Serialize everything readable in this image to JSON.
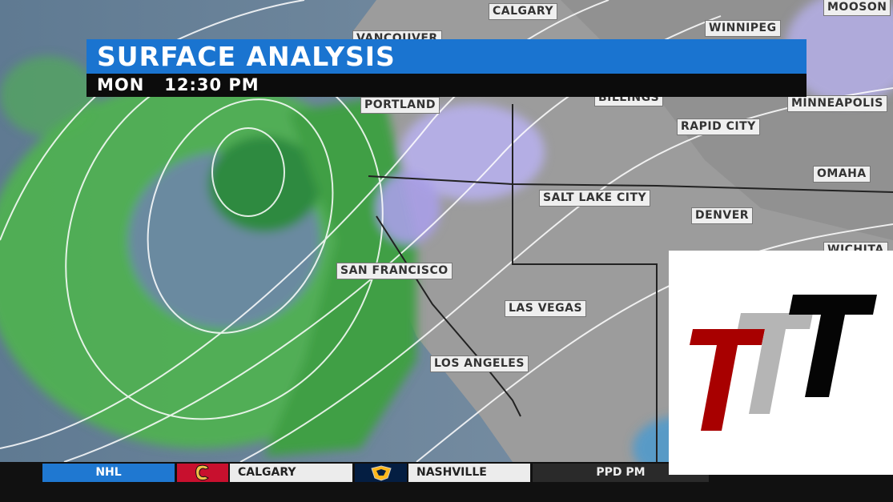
{
  "banner": {
    "title": "SURFACE ANALYSIS",
    "subtitle": "MON   12:30 PM"
  },
  "cities": [
    {
      "name": "CALGARY"
    },
    {
      "name": "WINNIPEG"
    },
    {
      "name": "MOOSON"
    },
    {
      "name": "VANCOUVER"
    },
    {
      "name": "PORTLAND"
    },
    {
      "name": "BILLINGS"
    },
    {
      "name": "MINNEAPOLIS"
    },
    {
      "name": "RAPID CITY"
    },
    {
      "name": "OMAHA"
    },
    {
      "name": "SALT LAKE CITY"
    },
    {
      "name": "DENVER"
    },
    {
      "name": "WICHITA"
    },
    {
      "name": "SAN FRANCISCO"
    },
    {
      "name": "LAS VEGAS"
    },
    {
      "name": "LOS ANGELES"
    }
  ],
  "ticker": {
    "league": "NHL",
    "team1": "CALGARY",
    "team2": "NASHVILLE",
    "status": "PPD PM"
  },
  "colors": {
    "banner_blue": "#1a74d0",
    "rain_green": "#4fbf4f",
    "snow_purple": "#b7b0ec",
    "ocean": "#6f8aa3",
    "land": "#9a9a9a",
    "calgary_red": "#c8102e",
    "nashville_navy": "#041e42"
  }
}
